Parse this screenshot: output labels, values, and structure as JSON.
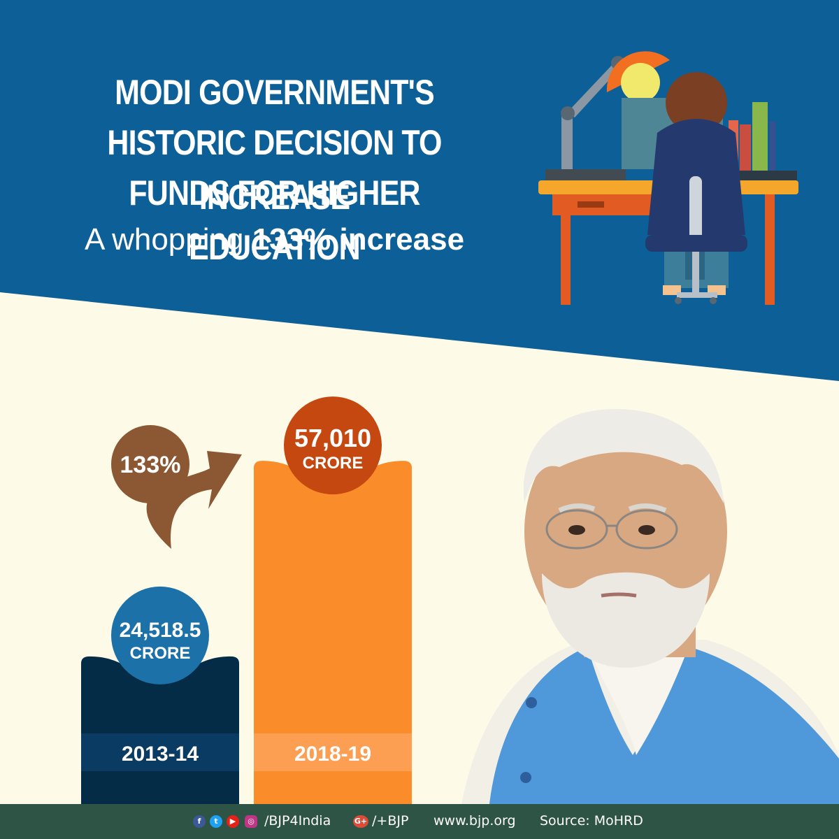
{
  "header": {
    "title_lines": [
      "MODI GOVERNMENT'S",
      "HISTORIC DECISION TO INCREASE",
      "FUNDS FOR HIGHER EDUCATION"
    ],
    "subtitle_prefix": "A whopping",
    "subtitle_highlight": "133% increase"
  },
  "chart_data": {
    "type": "bar",
    "categories": [
      "2013-14",
      "2018-19"
    ],
    "values": [
      24518.5,
      57010
    ],
    "value_labels": [
      "24,518.5",
      "57,010"
    ],
    "unit_label": "CRORE",
    "growth_label": "133%",
    "colors": [
      "#052c47",
      "#fb8c2a"
    ],
    "bubble_colors": [
      "#1c72a8",
      "#c4480f"
    ]
  },
  "footer": {
    "social_handle": "/BJP4India",
    "gplus_handle": "/+BJP",
    "website": "www.bjp.org",
    "source": "Source: MoHRD"
  },
  "colors": {
    "header_bg": "#0c5f97",
    "page_bg": "#fdfbe8",
    "footer_bg": "#2e5445",
    "arrow": "#8c5733"
  },
  "icons": [
    "facebook-icon",
    "twitter-icon",
    "youtube-icon",
    "instagram-icon",
    "google-plus-icon"
  ]
}
